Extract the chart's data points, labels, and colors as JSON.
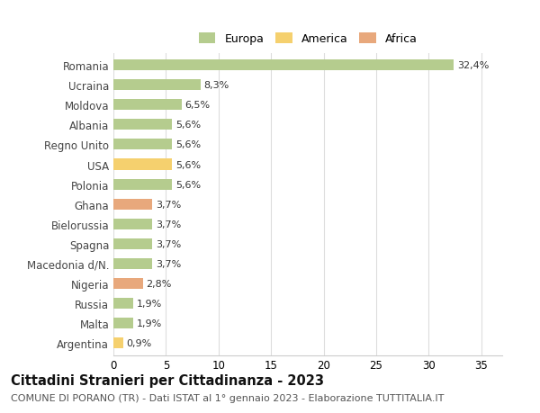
{
  "title": "Cittadini Stranieri per Cittadinanza - 2023",
  "subtitle": "COMUNE DI PORANO (TR) - Dati ISTAT al 1° gennaio 2023 - Elaborazione TUTTITALIA.IT",
  "countries": [
    "Romania",
    "Ucraina",
    "Moldova",
    "Albania",
    "Regno Unito",
    "USA",
    "Polonia",
    "Ghana",
    "Bielorussia",
    "Spagna",
    "Macedonia d/N.",
    "Nigeria",
    "Russia",
    "Malta",
    "Argentina"
  ],
  "values": [
    32.4,
    8.3,
    6.5,
    5.6,
    5.6,
    5.6,
    5.6,
    3.7,
    3.7,
    3.7,
    3.7,
    2.8,
    1.9,
    1.9,
    0.9
  ],
  "labels": [
    "32,4%",
    "8,3%",
    "6,5%",
    "5,6%",
    "5,6%",
    "5,6%",
    "5,6%",
    "3,7%",
    "3,7%",
    "3,7%",
    "3,7%",
    "2,8%",
    "1,9%",
    "1,9%",
    "0,9%"
  ],
  "continents": [
    "Europa",
    "Europa",
    "Europa",
    "Europa",
    "Europa",
    "America",
    "Europa",
    "Africa",
    "Europa",
    "Europa",
    "Europa",
    "Africa",
    "Europa",
    "Europa",
    "America"
  ],
  "colors": {
    "Europa": "#b5cc8e",
    "America": "#f5d06e",
    "Africa": "#e8a87c"
  },
  "xlim": [
    0,
    37
  ],
  "xticks": [
    0,
    5,
    10,
    15,
    20,
    25,
    30,
    35
  ],
  "background_color": "#ffffff",
  "grid_color": "#dddddd",
  "bar_height": 0.55,
  "title_fontsize": 10.5,
  "subtitle_fontsize": 8,
  "tick_fontsize": 8.5,
  "label_fontsize": 8,
  "legend_fontsize": 9
}
